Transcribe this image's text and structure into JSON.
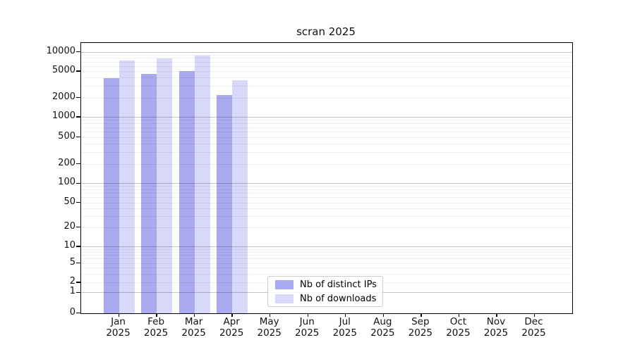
{
  "chart_data": {
    "type": "bar",
    "title": "scran 2025",
    "categories": [
      "Jan 2025",
      "Feb 2025",
      "Mar 2025",
      "Apr 2025",
      "May 2025",
      "Jun 2025",
      "Jul 2025",
      "Aug 2025",
      "Sep 2025",
      "Oct 2025",
      "Nov 2025",
      "Dec 2025"
    ],
    "series": [
      {
        "name": "Nb of distinct IPs",
        "color": "#a9a9f0",
        "values": [
          3900,
          4550,
          5000,
          2200,
          null,
          null,
          null,
          null,
          null,
          null,
          null,
          null
        ]
      },
      {
        "name": "Nb of downloads",
        "color": "#d8d8f8",
        "values": [
          7300,
          7800,
          8800,
          3650,
          null,
          null,
          null,
          null,
          null,
          null,
          null,
          null
        ]
      }
    ],
    "yscale": "symlog",
    "y_tick_values": [
      0,
      1,
      2,
      5,
      10,
      20,
      50,
      100,
      200,
      500,
      1000,
      2000,
      5000,
      10000
    ],
    "ylim": [
      0,
      13700
    ],
    "grid": "horizontal major and minor, drawn over bars",
    "legend_position": "bottom-center-inside",
    "colors": {
      "major_grid": "#c6c6c6",
      "minor_grid": "#f0f0f0",
      "spine": "#000000",
      "background": "#ffffff"
    }
  }
}
